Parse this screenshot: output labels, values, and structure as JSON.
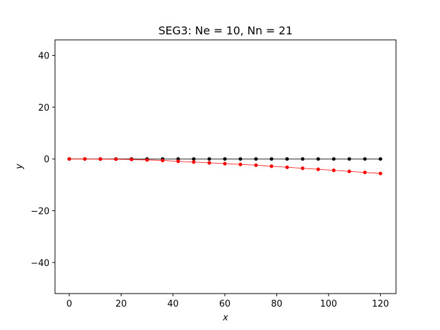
{
  "chart_data": {
    "type": "line",
    "title": "SEG3: Ne = 10, Nn = 21",
    "xlabel": "x",
    "ylabel": "y",
    "xlim": [
      -5.5,
      126
    ],
    "ylim": [
      -52,
      46
    ],
    "xticks": [
      0,
      20,
      40,
      60,
      80,
      100,
      120
    ],
    "yticks": [
      -40,
      -20,
      0,
      20,
      40
    ],
    "xtick_labels": [
      "0",
      "20",
      "40",
      "60",
      "80",
      "100",
      "120"
    ],
    "ytick_labels": [
      "−40",
      "−20",
      "0",
      "20",
      "40"
    ],
    "grid": false,
    "series": [
      {
        "color": "#000000",
        "x": [
          0,
          6,
          12,
          18,
          24,
          30,
          36,
          42,
          48,
          54,
          60,
          66,
          72,
          78,
          84,
          90,
          96,
          102,
          108,
          114,
          120
        ],
        "y": [
          0,
          0,
          0,
          0,
          0,
          0,
          0,
          0,
          0,
          0,
          0,
          0,
          0,
          0,
          0,
          0,
          0,
          0,
          0,
          0,
          0
        ]
      },
      {
        "color": "#ff0000",
        "x": [
          0,
          6,
          12,
          18,
          24,
          30,
          36,
          42,
          48,
          54,
          60,
          66,
          72,
          78,
          84,
          90,
          96,
          102,
          108,
          114,
          120
        ],
        "y": [
          0,
          0,
          -0.05,
          -0.1,
          -0.2,
          -0.4,
          -0.6,
          -0.9,
          -1.2,
          -1.5,
          -1.8,
          -2.1,
          -2.4,
          -2.8,
          -3.2,
          -3.6,
          -4.0,
          -4.4,
          -4.8,
          -5.2,
          -5.6
        ]
      }
    ]
  }
}
